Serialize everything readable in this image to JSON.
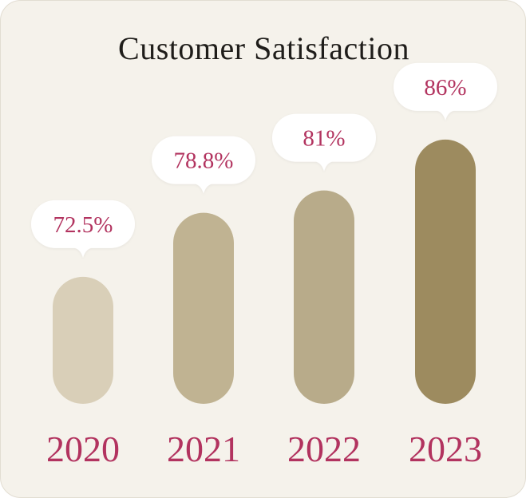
{
  "chart_data": {
    "type": "bar",
    "title": "Customer Satisfaction",
    "categories": [
      "2020",
      "2021",
      "2022",
      "2023"
    ],
    "values": [
      72.5,
      78.8,
      81,
      86
    ],
    "value_labels": [
      "72.5%",
      "78.8%",
      "81%",
      "86%"
    ],
    "unit": "%",
    "ylim": [
      60,
      90
    ],
    "grid": false,
    "legend": "none",
    "colors": [
      "#d9cfb8",
      "#c0b392",
      "#b8ab8a",
      "#9d8b5f"
    ],
    "label_color": "#b2335f",
    "background_color": "#f5f2eb"
  }
}
